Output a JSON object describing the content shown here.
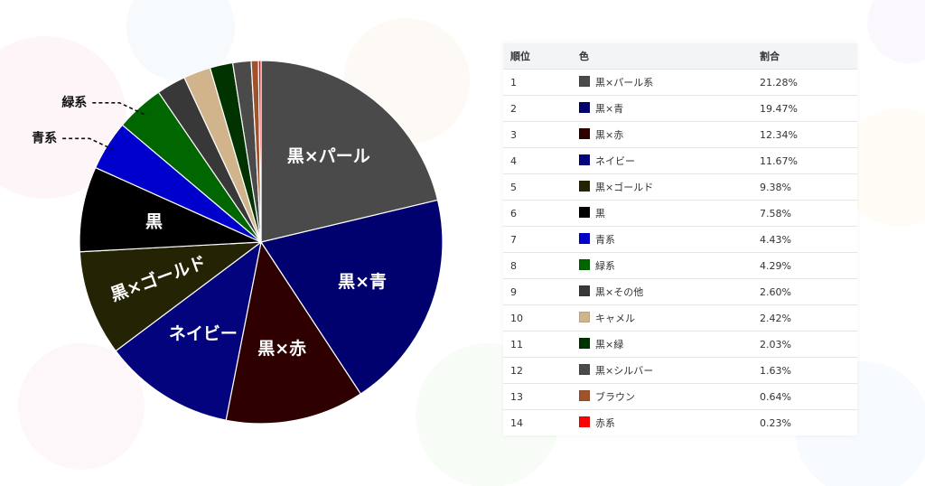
{
  "table": {
    "headers": {
      "rank": "順位",
      "color": "色",
      "share": "割合"
    },
    "rows": [
      {
        "rank": "1",
        "name": "黒×パール系",
        "share": "21.28%",
        "swatch": "#4a4a4a"
      },
      {
        "rank": "2",
        "name": "黒×青",
        "share": "19.47%",
        "swatch": "#00006e"
      },
      {
        "rank": "3",
        "name": "黒×赤",
        "share": "12.34%",
        "swatch": "#2e0000"
      },
      {
        "rank": "4",
        "name": "ネイビー",
        "share": "11.67%",
        "swatch": "#03037d"
      },
      {
        "rank": "5",
        "name": "黒×ゴールド",
        "share": "9.38%",
        "swatch": "#242405"
      },
      {
        "rank": "6",
        "name": "黒",
        "share": "7.58%",
        "swatch": "#000000"
      },
      {
        "rank": "7",
        "name": "青系",
        "share": "4.43%",
        "swatch": "#0000cc"
      },
      {
        "rank": "8",
        "name": "緑系",
        "share": "4.29%",
        "swatch": "#006600"
      },
      {
        "rank": "9",
        "name": "黒×その他",
        "share": "2.60%",
        "swatch": "#383838"
      },
      {
        "rank": "10",
        "name": "キャメル",
        "share": "2.42%",
        "swatch": "#d2b48c"
      },
      {
        "rank": "11",
        "name": "黒×緑",
        "share": "2.03%",
        "swatch": "#003300"
      },
      {
        "rank": "12",
        "name": "黒×シルバー",
        "share": "1.63%",
        "swatch": "#4a4a4a"
      },
      {
        "rank": "13",
        "name": "ブラウン",
        "share": "0.64%",
        "swatch": "#a0522d"
      },
      {
        "rank": "14",
        "name": "赤系",
        "share": "0.23%",
        "swatch": "#ff0000"
      }
    ]
  },
  "chart_data": {
    "type": "pie",
    "slices": [
      {
        "name": "黒×パール系",
        "label": "黒×パール",
        "value": 21.28,
        "color": "#4a4a4a"
      },
      {
        "name": "黒×青",
        "label": "黒×青",
        "value": 19.47,
        "color": "#00006e"
      },
      {
        "name": "黒×赤",
        "label": "黒×赤",
        "value": 12.34,
        "color": "#2e0000"
      },
      {
        "name": "ネイビー",
        "label": "ネイビー",
        "value": 11.67,
        "color": "#03037d"
      },
      {
        "name": "黒×ゴールド",
        "label": "黒×ゴールド",
        "value": 9.38,
        "color": "#242405",
        "label_rotate": true
      },
      {
        "name": "黒",
        "label": "黒",
        "value": 7.58,
        "color": "#000000"
      },
      {
        "name": "青系",
        "label": "",
        "value": 4.43,
        "color": "#0000cc",
        "callout": "青系"
      },
      {
        "name": "緑系",
        "label": "",
        "value": 4.29,
        "color": "#006600",
        "callout": "緑系"
      },
      {
        "name": "黒×その他",
        "label": "",
        "value": 2.6,
        "color": "#383838"
      },
      {
        "name": "キャメル",
        "label": "",
        "value": 2.42,
        "color": "#d2b48c"
      },
      {
        "name": "黒×緑",
        "label": "",
        "value": 2.03,
        "color": "#003300"
      },
      {
        "name": "黒×シルバー",
        "label": "",
        "value": 1.63,
        "color": "#4a4a4a"
      },
      {
        "name": "ブラウン",
        "label": "",
        "value": 0.64,
        "color": "#a0522d"
      },
      {
        "name": "赤系",
        "label": "",
        "value": 0.23,
        "color": "#ff0000"
      }
    ]
  }
}
